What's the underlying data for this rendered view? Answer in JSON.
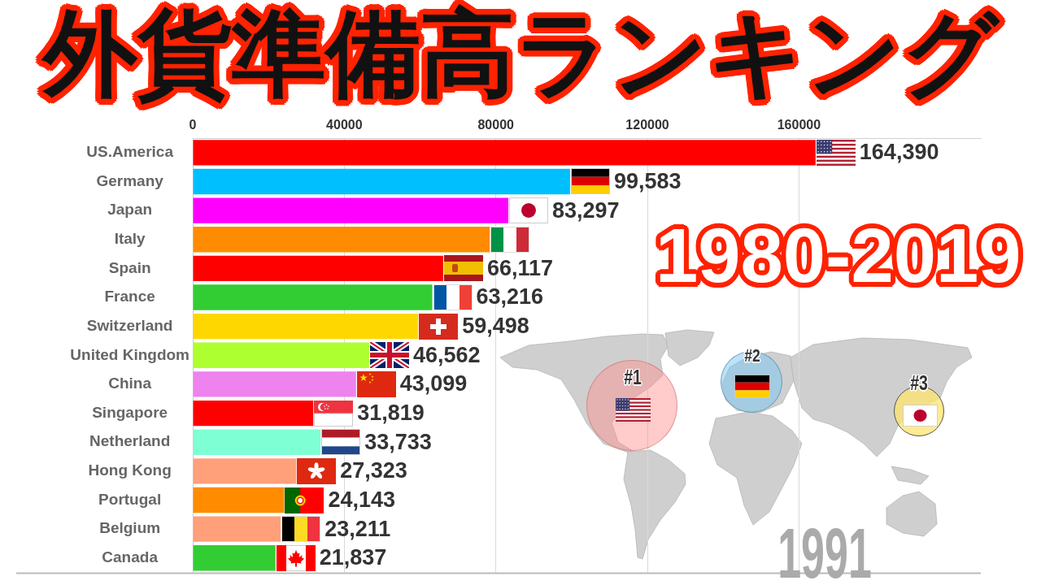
{
  "chart_data": {
    "type": "bar",
    "orientation": "horizontal",
    "title": "外貨準備高ランキング",
    "subtitle": "1980-2019",
    "categories": [
      "US.America",
      "Germany",
      "Japan",
      "Italy",
      "Spain",
      "France",
      "Switzerland",
      "United Kingdom",
      "China",
      "Singapore",
      "Netherland",
      "Hong Kong",
      "Portugal",
      "Belgium",
      "Canada"
    ],
    "values": [
      164390,
      99583,
      83297,
      78400,
      66117,
      63216,
      59498,
      46562,
      43099,
      31819,
      33733,
      27323,
      24143,
      23211,
      21837
    ],
    "colors": [
      "#ff0000",
      "#00bfff",
      "#ff00ff",
      "#ff8c00",
      "#ff0000",
      "#32cd32",
      "#ffd700",
      "#adff2f",
      "#ee82ee",
      "#ff0000",
      "#7fffd4",
      "#ffa07a",
      "#ff8c00",
      "#ffa07a",
      "#32cd32"
    ],
    "value_labels": [
      "164,390",
      "99,583",
      "83,297",
      null,
      "66,117",
      "63,216",
      "59,498",
      "46,562",
      "43,099",
      "31,819",
      "33,733",
      "27,323",
      "24,143",
      "23,211",
      "21,837"
    ],
    "xlim": [
      0,
      208000
    ],
    "xticks": [
      0,
      40000,
      80000,
      120000,
      160000
    ],
    "grid": "x",
    "annotations": [
      "#1",
      "#2",
      "#3",
      "1991"
    ]
  }
}
